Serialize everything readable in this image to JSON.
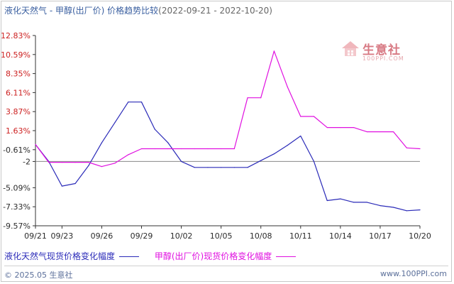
{
  "title": {
    "main": "液化天然气 - 甲醇(出厂价) 价格趋势比较",
    "range": "(2022-09-21 - 2022-10-20)"
  },
  "watermark": {
    "name": "生意社",
    "url": "100PPI.COM"
  },
  "footer": {
    "copyright": "© 2025.05 生意社",
    "site": "www.100PPI.com"
  },
  "chart_data": {
    "type": "line",
    "title": "液化天然气 - 甲醇(出厂价) 价格趋势比较 (2022-09-21 - 2022-10-20)",
    "x": [
      "09/21",
      "09/22",
      "09/23",
      "09/24",
      "09/25",
      "09/26",
      "09/27",
      "09/28",
      "09/29",
      "09/30",
      "10/01",
      "10/02",
      "10/03",
      "10/04",
      "10/05",
      "10/06",
      "10/07",
      "10/08",
      "10/09",
      "10/10",
      "10/11",
      "10/12",
      "10/13",
      "10/14",
      "10/15",
      "10/16",
      "10/17",
      "10/18",
      "10/19",
      "10/20"
    ],
    "x_tick_labels": [
      "09/21",
      "09/23",
      "09/26",
      "09/29",
      "10/02",
      "10/05",
      "10/08",
      "10/11",
      "10/14",
      "10/17",
      "10/20"
    ],
    "y_tick_labels": [
      "12.83%",
      "10.59%",
      "8.35%",
      "6.11%",
      "3.87%",
      "1.63%",
      "-0.61%",
      "-2",
      "-5.09%",
      "-7.33%",
      "-9.57%"
    ],
    "y_tick_values": [
      12.83,
      10.59,
      8.35,
      6.11,
      3.87,
      1.63,
      -0.61,
      -2,
      -5.09,
      -7.33,
      -9.57
    ],
    "ylim": [
      -9.57,
      12.83
    ],
    "reference_line": -2,
    "grid": false,
    "legend_position": "bottom",
    "series": [
      {
        "name": "液化天然气现货价格变化幅度",
        "color": "#2a2ab8",
        "values": [
          0.0,
          -2.0,
          -4.9,
          -4.6,
          -2.5,
          0.2,
          2.6,
          5.0,
          5.0,
          1.8,
          0.2,
          -2.0,
          -2.7,
          -2.7,
          -2.7,
          -2.7,
          -2.7,
          -1.9,
          -1.1,
          -0.1,
          1.0,
          -2.0,
          -6.6,
          -6.4,
          -6.8,
          -6.8,
          -7.2,
          -7.4,
          -7.8,
          -7.7
        ]
      },
      {
        "name": "甲醇(出厂价)现货价格变化幅度",
        "color": "#e010e0",
        "values": [
          0.0,
          -2.1,
          -2.1,
          -2.1,
          -2.1,
          -2.6,
          -2.2,
          -1.2,
          -0.5,
          -0.5,
          -0.5,
          -0.5,
          -0.5,
          -0.5,
          -0.5,
          -0.5,
          5.5,
          5.5,
          11.0,
          6.8,
          3.3,
          3.3,
          2.0,
          2.0,
          2.0,
          1.5,
          1.5,
          1.5,
          -0.4,
          -0.5
        ]
      }
    ]
  }
}
